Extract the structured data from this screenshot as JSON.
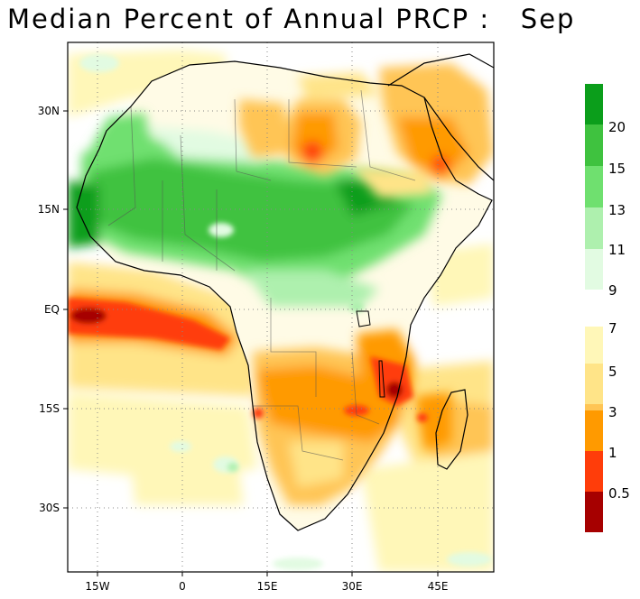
{
  "title": "Median Percent of Annual PRCP :   Sep",
  "lat_axis": [
    "30N",
    "15N",
    "EQ",
    "15S",
    "30S"
  ],
  "lon_axis": [
    "15W",
    "0",
    "15E",
    "30E",
    "45E"
  ],
  "colorbar_upper": {
    "labels": [
      "20",
      "15",
      "13",
      "11",
      "9"
    ],
    "colors": [
      "#0b9e1b",
      "#3fc23f",
      "#6fe06f",
      "#aef0ae",
      "#e2fbe2"
    ]
  },
  "colorbar_lower": {
    "labels": [
      "7",
      "5",
      "3",
      "1",
      "0.5"
    ],
    "colors": [
      "#fff7b8",
      "#ffe488",
      "#ffc555",
      "#ff9a00",
      "#ff3d0a",
      "#a60000"
    ]
  }
}
